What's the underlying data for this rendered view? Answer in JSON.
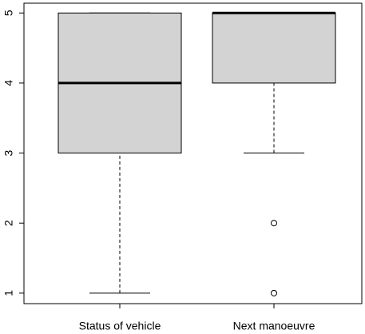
{
  "chart_data": {
    "type": "box",
    "categories": [
      "Status of vehicle",
      "Next manoeuvre"
    ],
    "boxes": [
      {
        "min": 1,
        "q1": 3,
        "median": 4,
        "q3": 5,
        "max": 5
      },
      {
        "min": 3,
        "q1": 4,
        "median": 5,
        "q3": 5,
        "max": 5,
        "outliers": [
          2,
          1
        ]
      }
    ],
    "color": "#d3d3d3",
    "ylim": [
      0.85,
      5.14
    ],
    "yticks": [
      1,
      2,
      3,
      4,
      5
    ]
  }
}
